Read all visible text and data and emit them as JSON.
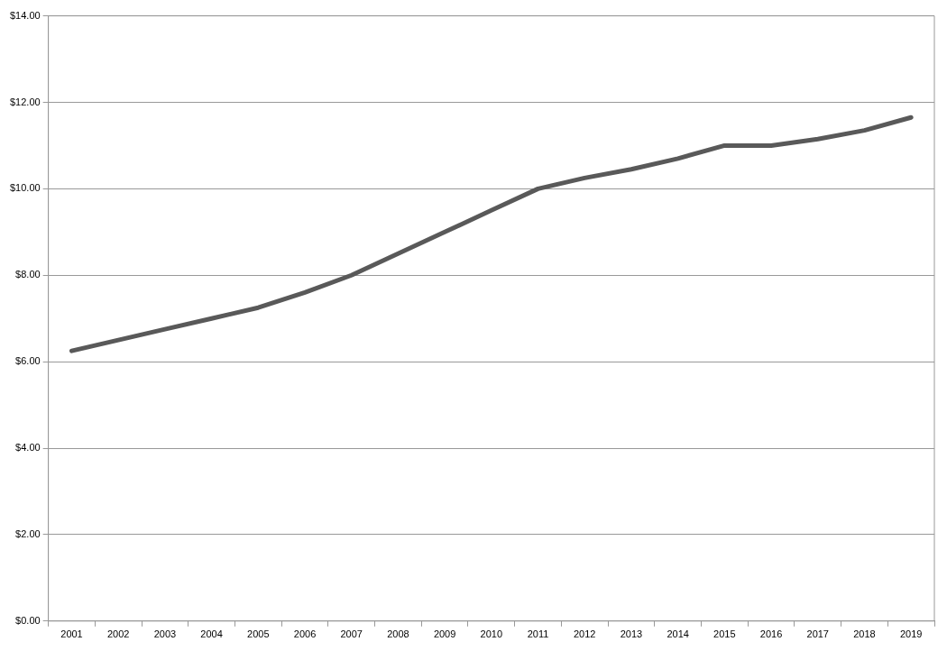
{
  "chart_data": {
    "type": "line",
    "categories": [
      "2001",
      "2002",
      "2003",
      "2004",
      "2005",
      "2006",
      "2007",
      "2008",
      "2009",
      "2010",
      "2011",
      "2012",
      "2013",
      "2014",
      "2015",
      "2016",
      "2017",
      "2018",
      "2019"
    ],
    "series": [
      {
        "color": "#595959",
        "values": [
          6.25,
          6.5,
          6.75,
          7.0,
          7.25,
          7.6,
          8.0,
          8.5,
          9.0,
          9.5,
          10.0,
          10.25,
          10.45,
          10.7,
          11.0,
          11.0,
          11.15,
          11.35,
          11.65
        ]
      }
    ],
    "ylim": [
      0,
      14
    ],
    "yticks": [
      {
        "value": 0,
        "label": "$0.00"
      },
      {
        "value": 2,
        "label": "$2.00"
      },
      {
        "value": 4,
        "label": "$4.00"
      },
      {
        "value": 6,
        "label": "$6.00"
      },
      {
        "value": 8,
        "label": "$8.00"
      },
      {
        "value": 10,
        "label": "$10.00"
      },
      {
        "value": 12,
        "label": "$12.00"
      },
      {
        "value": 14,
        "label": "$14.00"
      }
    ],
    "grid": "y",
    "legend": false,
    "marker": "none",
    "line_style": "solid"
  }
}
